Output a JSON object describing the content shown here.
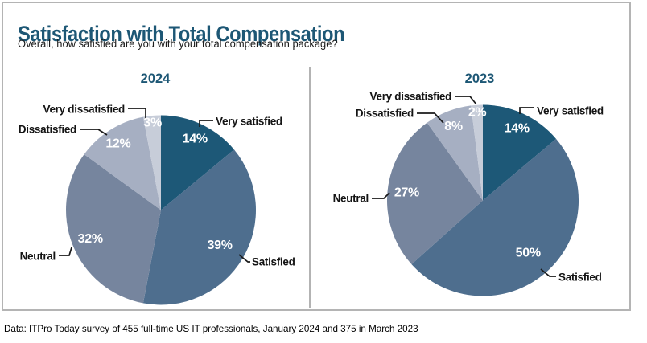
{
  "header": {
    "title": "Satisfaction with Total Compensation",
    "subtitle": "Overall, how satisfied are you with your total compensation package?"
  },
  "footer": {
    "source": "Data: ITPro Today survey of 455 full-time US IT professionals, January 2024 and 375 in March 2023"
  },
  "colors": {
    "very_satisfied": "#1d5877",
    "satisfied": "#4e6e8e",
    "neutral": "#76859e",
    "dissatisfied": "#a6afc2",
    "very_dissatisfied": "#c7cdd9",
    "accent_title": "#1d5775",
    "panel_border": "#b4b4b4",
    "divider": "#9a9a9a"
  },
  "chart_data": [
    {
      "type": "pie",
      "title": "2024",
      "legend_position": "none",
      "labels_on_slices": true,
      "start_angle_deg": 0,
      "direction": "clockwise",
      "categories": [
        "Very satisfied",
        "Satisfied",
        "Neutral",
        "Dissatisfied",
        "Very dissatisfied"
      ],
      "values": [
        14,
        39,
        32,
        12,
        3
      ],
      "slices": [
        {
          "key": "very_satisfied",
          "label": "Very satisfied",
          "value": 14,
          "pct_label": "14%"
        },
        {
          "key": "satisfied",
          "label": "Satisfied",
          "value": 39,
          "pct_label": "39%"
        },
        {
          "key": "neutral",
          "label": "Neutral",
          "value": 32,
          "pct_label": "32%"
        },
        {
          "key": "dissatisfied",
          "label": "Dissatisfied",
          "value": 12,
          "pct_label": "12%"
        },
        {
          "key": "very_dissatisfied",
          "label": "Very dissatisfied",
          "value": 3,
          "pct_label": "3%"
        }
      ]
    },
    {
      "type": "pie",
      "title": "2023",
      "legend_position": "none",
      "labels_on_slices": true,
      "start_angle_deg": 0,
      "direction": "clockwise",
      "categories": [
        "Very satisfied",
        "Satisfied",
        "Neutral",
        "Dissatisfied",
        "Very dissatisfied"
      ],
      "values": [
        14,
        50,
        27,
        8,
        2
      ],
      "slices": [
        {
          "key": "very_satisfied",
          "label": "Very satisfied",
          "value": 14,
          "pct_label": "14%"
        },
        {
          "key": "satisfied",
          "label": "Satisfied",
          "value": 50,
          "pct_label": "50%"
        },
        {
          "key": "neutral",
          "label": "Neutral",
          "value": 27,
          "pct_label": "27%"
        },
        {
          "key": "dissatisfied",
          "label": "Dissatisfied",
          "value": 8,
          "pct_label": "8%"
        },
        {
          "key": "very_dissatisfied",
          "label": "Very dissatisfied",
          "value": 2,
          "pct_label": "2%"
        }
      ]
    }
  ]
}
